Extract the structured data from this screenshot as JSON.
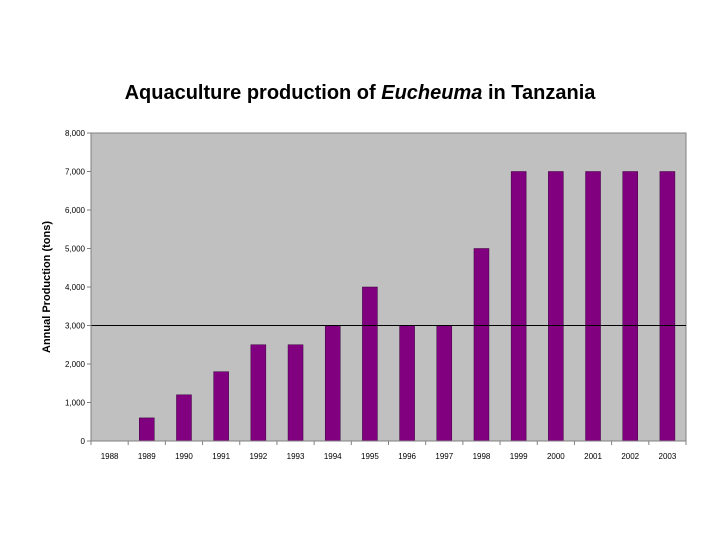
{
  "chart_data": {
    "type": "bar",
    "title_parts": [
      "Aquaculture production of ",
      "Eucheuma",
      " in Tanzania"
    ],
    "xlabel": "",
    "ylabel": "Annual Production (tons)",
    "categories": [
      "1988",
      "1989",
      "1990",
      "1991",
      "1992",
      "1993",
      "1994",
      "1995",
      "1996",
      "1997",
      "1998",
      "1999",
      "2000",
      "2001",
      "2002",
      "2003"
    ],
    "values": [
      0,
      600,
      1200,
      1800,
      2500,
      2500,
      3000,
      4000,
      3000,
      3000,
      5000,
      7000,
      7000,
      7000,
      7000,
      7000
    ],
    "ylim": [
      0,
      8000
    ],
    "yticks": [
      0,
      1000,
      2000,
      3000,
      4000,
      5000,
      6000,
      7000,
      8000
    ],
    "ytick_labels": [
      "0",
      "1,000",
      "2,000",
      "3,000",
      "4,000",
      "5,000",
      "6,000",
      "7,000",
      "8,000"
    ],
    "reference_line": 3000,
    "grid": false,
    "legend": "none",
    "colors": {
      "bar": "#800080",
      "bar_edge": "#3a003a",
      "plot_bg": "#c0c0c0",
      "axis": "#808080",
      "ref_line": "#000000"
    }
  }
}
